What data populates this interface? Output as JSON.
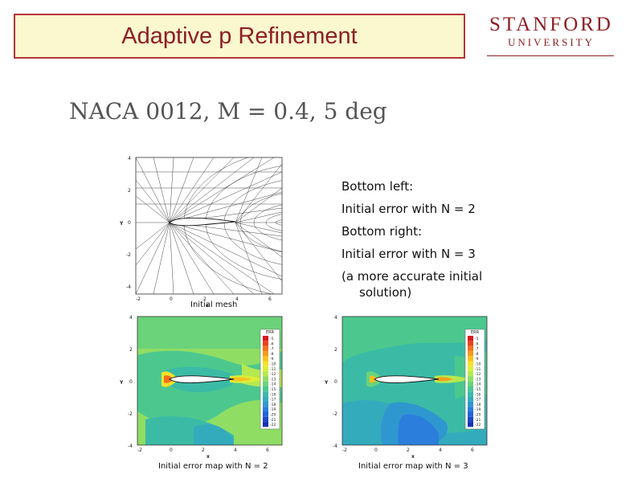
{
  "slide": {
    "title": "Adaptive p Refinement",
    "logo_line1": "STANFORD",
    "logo_line2": "UNIVERSITY",
    "subtitle": "NACA 0012, M = 0.4, 5 deg",
    "notes": [
      "Bottom left:",
      "Initial error with N = 2",
      "Bottom right:",
      "Initial error with N = 3",
      "(a more accurate initial",
      "solution)"
    ],
    "colors": {
      "title_border": "#b3343a",
      "title_fill": "#fbf7cf",
      "title_text": "#8e1f24"
    }
  },
  "plots": {
    "axis": {
      "xlabel": "x",
      "ylabel": "Y",
      "xticks": [
        "-2",
        "0",
        "2",
        "4",
        "6"
      ],
      "yticks": [
        "4",
        "2",
        "0",
        "-2",
        "-4"
      ]
    },
    "mesh": {
      "caption": "Initial mesh"
    },
    "error_n2": {
      "caption": "Initial error map with N = 2"
    },
    "error_n3": {
      "caption": "Initial error map with N = 3"
    },
    "legend": {
      "title": "ERR",
      "levels": [
        "-5",
        "-6",
        "-7",
        "-8",
        "-9",
        "-10",
        "-11",
        "-12",
        "-13",
        "-14",
        "-15",
        "-16",
        "-17",
        "-18",
        "-19",
        "-20",
        "-21",
        "-22"
      ],
      "colors": [
        "#d7191c",
        "#e8401c",
        "#f2701d",
        "#f59b1f",
        "#f7c020",
        "#f5e12a",
        "#dbee3a",
        "#b6e84f",
        "#8fdd63",
        "#6bd37a",
        "#4cc88f",
        "#3bbba6",
        "#33abbd",
        "#2f97cf",
        "#2b7edb",
        "#2563d8",
        "#1e47c9",
        "#1532b3"
      ]
    }
  }
}
